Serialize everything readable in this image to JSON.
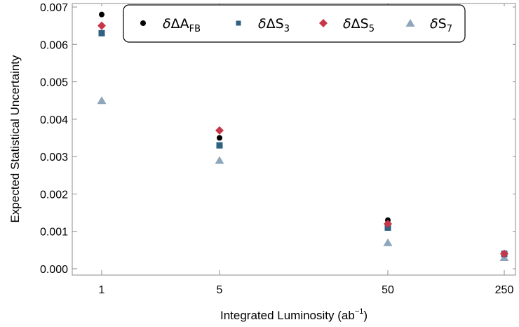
{
  "chart_data": {
    "type": "scatter",
    "xlabel": "Integrated Luminosity (ab",
    "xlabel_sup": "−1",
    "xlabel_end": ")",
    "ylabel": "Expected Statistical Uncertainty",
    "x_scale": "categorical",
    "categories": [
      "1",
      "5",
      "50",
      "250"
    ],
    "ylim": [
      0,
      0.007
    ],
    "yticks": [
      "0.000",
      "0.001",
      "0.002",
      "0.003",
      "0.004",
      "0.005",
      "0.006",
      "0.007"
    ],
    "legend_position": "top",
    "series": [
      {
        "legend_prefix": "δΔA",
        "legend_sub": "FB",
        "marker": "circle",
        "color": "#000000",
        "values": [
          0.0068,
          0.0035,
          0.0013,
          0.0004
        ]
      },
      {
        "legend_prefix": "δΔS",
        "legend_sub": "3",
        "marker": "square",
        "color": "#2f6181",
        "values": [
          0.0063,
          0.0033,
          0.0011,
          0.0004
        ]
      },
      {
        "legend_prefix": "δΔS",
        "legend_sub": "5",
        "marker": "diamond",
        "color": "#c7374a",
        "values": [
          0.0065,
          0.0037,
          0.0012,
          0.0004
        ]
      },
      {
        "legend_prefix": "δS",
        "legend_sub": "7",
        "marker": "triangle",
        "color": "#8ea6bb",
        "values": [
          0.0045,
          0.0029,
          0.0007,
          0.0003
        ]
      }
    ]
  }
}
